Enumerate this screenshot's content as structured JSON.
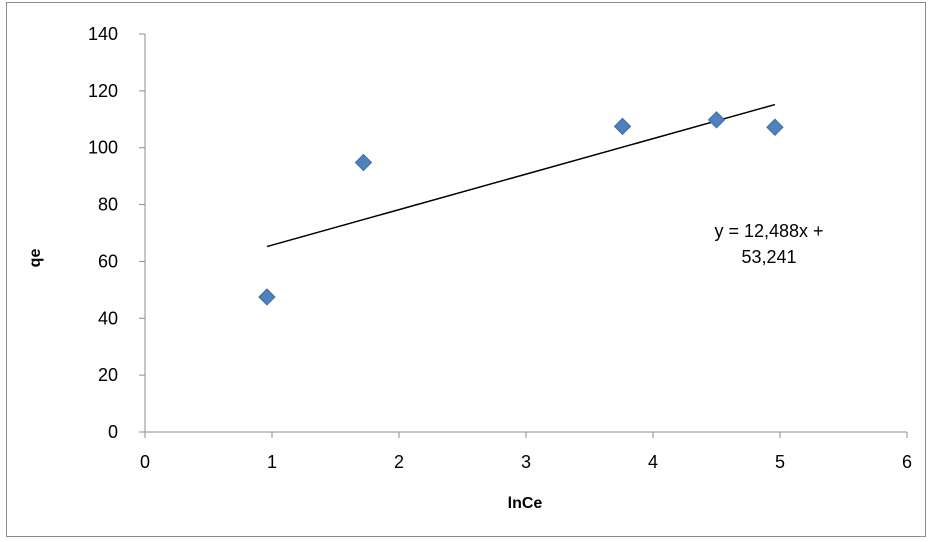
{
  "chart_data": {
    "type": "scatter",
    "xlabel": "lnCe",
    "ylabel": "qe",
    "xlim": [
      0,
      6
    ],
    "ylim": [
      0,
      140
    ],
    "x_ticks": [
      0,
      1,
      2,
      3,
      4,
      5,
      6
    ],
    "y_ticks": [
      0,
      20,
      40,
      60,
      80,
      100,
      120,
      140
    ],
    "grid": false,
    "legend": "none",
    "marker": "diamond",
    "marker_color": "#4f81bd",
    "trendline_color": "#000000",
    "series": [
      {
        "points": [
          {
            "x": 0.96,
            "y": 47.5
          },
          {
            "x": 1.72,
            "y": 94.8
          },
          {
            "x": 3.76,
            "y": 107.5
          },
          {
            "x": 4.5,
            "y": 109.8
          },
          {
            "x": 4.96,
            "y": 107.2
          }
        ]
      }
    ],
    "trendline": {
      "slope": 12.488,
      "intercept": 53.241,
      "x_range": [
        0.96,
        4.96
      ],
      "equation_line1": "y = 12,488x +",
      "equation_line2": "53,241"
    }
  }
}
